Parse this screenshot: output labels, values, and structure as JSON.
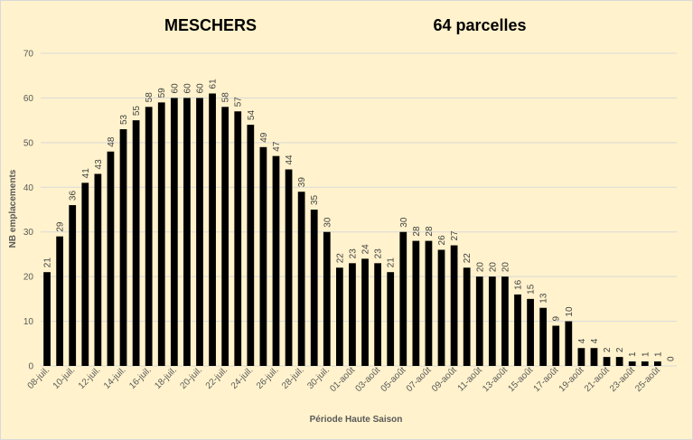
{
  "colors": {
    "background": "#fff2cc",
    "bar": "#000000",
    "grid": "#d9d9d9"
  },
  "chart_data": {
    "type": "bar",
    "title": "MESCHERS",
    "subtitle": "64 parcelles",
    "xlabel": "Période Haute Saison",
    "ylabel": "NB emplacements",
    "ylim": [
      0,
      70
    ],
    "yticks": [
      0,
      10,
      20,
      30,
      40,
      50,
      60,
      70
    ],
    "grid": true,
    "legend": "none",
    "categories": [
      "08-juil.",
      "09-juil.",
      "10-juil.",
      "11-juil.",
      "12-juil.",
      "13-juil.",
      "14-juil.",
      "15-juil.",
      "16-juil.",
      "17-juil.",
      "18-juil.",
      "19-juil.",
      "20-juil.",
      "21-juil.",
      "22-juil.",
      "23-juil.",
      "24-juil.",
      "25-juil.",
      "26-juil.",
      "27-juil.",
      "28-juil.",
      "29-juil.",
      "30-juil.",
      "31-juil.",
      "01-août",
      "02-août",
      "03-août",
      "04-août",
      "05-août",
      "06-août",
      "07-août",
      "08-août",
      "09-août",
      "10-août",
      "11-août",
      "12-août",
      "13-août",
      "14-août",
      "15-août",
      "16-août",
      "17-août",
      "18-août",
      "19-août",
      "20-août",
      "21-août",
      "22-août",
      "23-août",
      "24-août",
      "25-août",
      "26-août"
    ],
    "visible_xticks": [
      "08-juil.",
      "10-juil.",
      "12-juil.",
      "14-juil.",
      "16-juil.",
      "18-juil.",
      "20-juil.",
      "22-juil.",
      "24-juil.",
      "26-juil.",
      "28-juil.",
      "30-juil.",
      "01-août",
      "03-août",
      "05-août",
      "07-août",
      "09-août",
      "11-août",
      "13-août",
      "15-août",
      "17-août",
      "19-août",
      "21-août",
      "23-août",
      "25-août"
    ],
    "values": [
      21,
      29,
      36,
      41,
      43,
      48,
      53,
      55,
      58,
      59,
      60,
      60,
      60,
      61,
      58,
      57,
      54,
      49,
      47,
      44,
      39,
      35,
      30,
      22,
      23,
      24,
      23,
      21,
      30,
      28,
      28,
      26,
      27,
      22,
      20,
      20,
      20,
      16,
      15,
      13,
      9,
      10,
      4,
      4,
      2,
      2,
      1,
      1,
      1,
      0
    ]
  }
}
